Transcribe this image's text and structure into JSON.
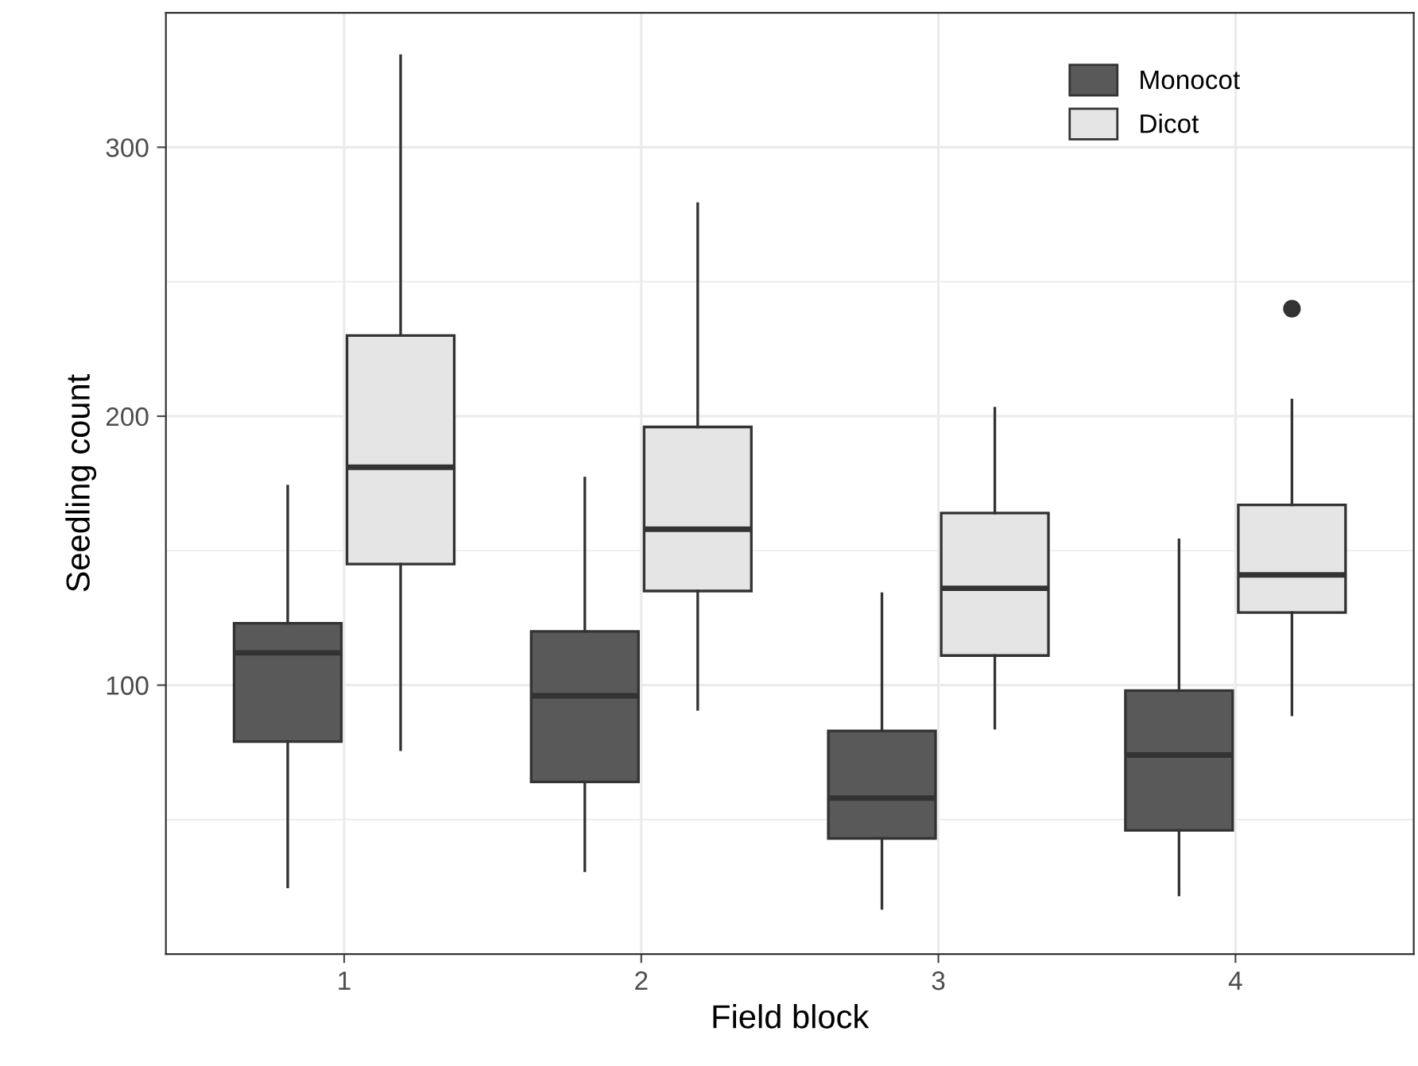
{
  "chart_data": {
    "type": "box",
    "xlabel": "Field block",
    "ylabel": "Seedling count",
    "categories": [
      "1",
      "2",
      "3",
      "4"
    ],
    "ylim": [
      0,
      350
    ],
    "yticks": [
      100,
      200,
      300
    ],
    "grid": true,
    "legend": "top right",
    "series": [
      {
        "name": "Monocot",
        "color": "#595959",
        "boxes": [
          {
            "low": 25,
            "q1": 79,
            "median": 112,
            "q3": 123,
            "high": 174
          },
          {
            "low": 31,
            "q1": 64,
            "median": 96,
            "q3": 120,
            "high": 177
          },
          {
            "low": 17,
            "q1": 43,
            "median": 58,
            "q3": 83,
            "high": 134
          },
          {
            "low": 22,
            "q1": 46,
            "median": 74,
            "q3": 98,
            "high": 154
          }
        ]
      },
      {
        "name": "Dicot",
        "color": "#e5e5e5",
        "boxes": [
          {
            "low": 76,
            "q1": 145,
            "median": 181,
            "q3": 230,
            "high": 334
          },
          {
            "low": 91,
            "q1": 135,
            "median": 158,
            "q3": 196,
            "high": 279
          },
          {
            "low": 84,
            "q1": 111,
            "median": 136,
            "q3": 164,
            "high": 203
          },
          {
            "low": 89,
            "q1": 127,
            "median": 141,
            "q3": 167,
            "high": 206,
            "outliers": [
              240
            ]
          }
        ]
      }
    ]
  }
}
